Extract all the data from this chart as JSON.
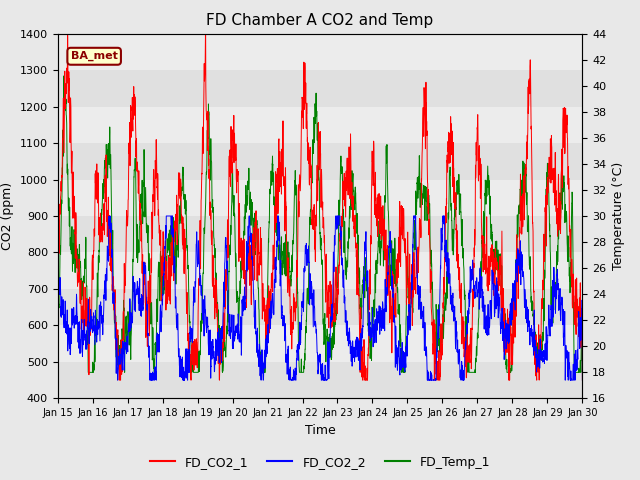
{
  "title": "FD Chamber A CO2 and Temp",
  "xlabel": "Time",
  "ylabel_left": "CO2 (ppm)",
  "ylabel_right": "Temperature (°C)",
  "co2_ylim": [
    400,
    1400
  ],
  "temp_ylim": [
    16,
    44
  ],
  "line_colors": {
    "co2_1": "red",
    "co2_2": "blue",
    "temp_1": "green"
  },
  "legend_labels": [
    "FD_CO2_1",
    "FD_CO2_2",
    "FD_Temp_1"
  ],
  "annotation_text": "BA_met",
  "background_color": "#e8e8e8",
  "band_colors": [
    "#e0e0e0",
    "#ececec"
  ],
  "title_fontsize": 11,
  "axis_fontsize": 9,
  "tick_fontsize": 8,
  "xtick_labels": [
    "Jan 15",
    "Jan 16",
    "Jan 17",
    "Jan 18",
    "Jan 19",
    "Jan 20",
    "Jan 21",
    "Jan 22",
    "Jan 23",
    "Jan 24",
    "Jan 25",
    "Jan 26",
    "Jan 27",
    "Jan 28",
    "Jan 29",
    "Jan 30"
  ]
}
